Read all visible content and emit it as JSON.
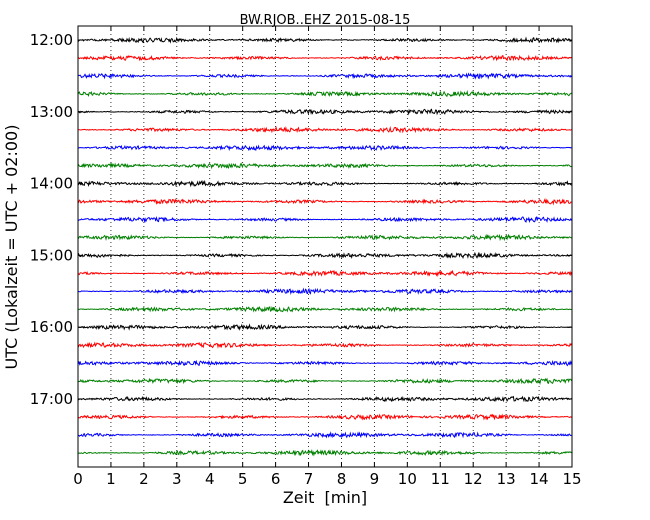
{
  "chart_data": {
    "type": "line",
    "title": "BW.RJOB..EHZ 2015-08-15",
    "xlabel": "Zeit  [min]",
    "ylabel": "UTC (Lokalzeit = UTC + 02:00)",
    "xlim": [
      0,
      15
    ],
    "x_ticks": [
      "0",
      "1",
      "2",
      "3",
      "4",
      "5",
      "6",
      "7",
      "8",
      "9",
      "10",
      "11",
      "12",
      "13",
      "14",
      "15"
    ],
    "y_ticks": [
      "12:00",
      "13:00",
      "14:00",
      "15:00",
      "16:00",
      "17:00"
    ],
    "grid": "vertical dotted",
    "series_colors": [
      "#000000",
      "#ff0000",
      "#0000ff",
      "#008000"
    ],
    "traces": [
      {
        "start": "12:00",
        "color": "#000000"
      },
      {
        "start": "12:15",
        "color": "#ff0000"
      },
      {
        "start": "12:30",
        "color": "#0000ff"
      },
      {
        "start": "12:45",
        "color": "#008000"
      },
      {
        "start": "13:00",
        "color": "#000000"
      },
      {
        "start": "13:15",
        "color": "#ff0000"
      },
      {
        "start": "13:30",
        "color": "#0000ff"
      },
      {
        "start": "13:45",
        "color": "#008000"
      },
      {
        "start": "14:00",
        "color": "#000000"
      },
      {
        "start": "14:15",
        "color": "#ff0000"
      },
      {
        "start": "14:30",
        "color": "#0000ff"
      },
      {
        "start": "14:45",
        "color": "#008000"
      },
      {
        "start": "15:00",
        "color": "#000000"
      },
      {
        "start": "15:15",
        "color": "#ff0000"
      },
      {
        "start": "15:30",
        "color": "#0000ff"
      },
      {
        "start": "15:45",
        "color": "#008000"
      },
      {
        "start": "16:00",
        "color": "#000000"
      },
      {
        "start": "16:15",
        "color": "#ff0000"
      },
      {
        "start": "16:30",
        "color": "#0000ff"
      },
      {
        "start": "16:45",
        "color": "#008000"
      },
      {
        "start": "17:00",
        "color": "#000000"
      },
      {
        "start": "17:15",
        "color": "#ff0000"
      },
      {
        "start": "17:30",
        "color": "#0000ff"
      },
      {
        "start": "17:45",
        "color": "#008000"
      }
    ]
  }
}
